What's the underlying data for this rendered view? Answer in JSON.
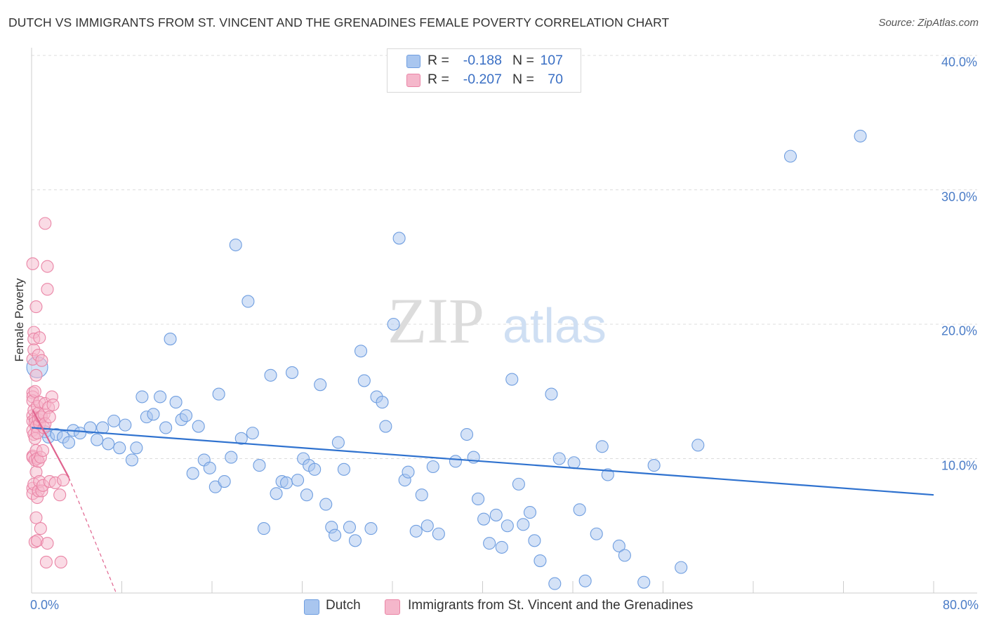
{
  "title": "DUTCH VS IMMIGRANTS FROM ST. VINCENT AND THE GRENADINES FEMALE POVERTY CORRELATION CHART",
  "source": "Source: ZipAtlas.com",
  "watermark": {
    "zip": "ZIP",
    "atlas": "atlas"
  },
  "colors": {
    "blue_fill": "#a9c6ef",
    "blue_stroke": "#6f9ee0",
    "blue_line": "#2f72cf",
    "pink_fill": "#f5b7cb",
    "pink_stroke": "#ea85a6",
    "pink_line": "#e0648f",
    "axis_text": "#4a7cc7",
    "grid": "#dcdcdc"
  },
  "stats": [
    {
      "swatch": "blue",
      "r_label": "R =",
      "r_value": "-0.188",
      "n_label": "N =",
      "n_value": "107"
    },
    {
      "swatch": "pink",
      "r_label": "R =",
      "r_value": "-0.207",
      "n_label": "N =",
      "n_value": "70"
    }
  ],
  "legend": [
    {
      "label": "Dutch",
      "swatch": "blue"
    },
    {
      "label": "Immigrants from St. Vincent and the Grenadines",
      "swatch": "pink"
    }
  ],
  "chart_data": {
    "type": "scatter",
    "title": "DUTCH VS IMMIGRANTS FROM ST. VINCENT AND THE GRENADINES FEMALE POVERTY CORRELATION CHART",
    "ylabel": "Female Poverty",
    "xlabel": "",
    "xlim": [
      0,
      80
    ],
    "ylim": [
      0,
      40
    ],
    "x_tick_labels": [
      {
        "value": 0,
        "label": "0.0%"
      },
      {
        "value": 80,
        "label": "80.0%"
      }
    ],
    "y_tick_labels": [
      {
        "value": 10,
        "label": "10.0%"
      },
      {
        "value": 20,
        "label": "20.0%"
      },
      {
        "value": 30,
        "label": "30.0%"
      },
      {
        "value": 40,
        "label": "40.0%"
      }
    ],
    "grid": true,
    "legend_position": "bottom-center",
    "series": [
      {
        "name": "Dutch",
        "color": "blue",
        "trend": {
          "x": [
            0,
            80
          ],
          "y": [
            12.3,
            7.3
          ]
        },
        "points": [
          [
            0.5,
            16.8
          ],
          [
            1.2,
            12.0
          ],
          [
            1.5,
            11.6
          ],
          [
            2.2,
            11.8
          ],
          [
            2.8,
            11.6
          ],
          [
            3.3,
            11.2
          ],
          [
            3.7,
            12.1
          ],
          [
            4.3,
            11.9
          ],
          [
            5.2,
            12.3
          ],
          [
            5.8,
            11.4
          ],
          [
            6.3,
            12.3
          ],
          [
            6.8,
            11.1
          ],
          [
            7.3,
            12.8
          ],
          [
            7.8,
            10.8
          ],
          [
            8.3,
            12.5
          ],
          [
            8.9,
            9.9
          ],
          [
            9.3,
            10.8
          ],
          [
            9.8,
            14.6
          ],
          [
            10.2,
            13.1
          ],
          [
            10.8,
            13.3
          ],
          [
            11.4,
            14.6
          ],
          [
            11.9,
            12.3
          ],
          [
            12.3,
            18.9
          ],
          [
            12.8,
            14.2
          ],
          [
            13.3,
            12.9
          ],
          [
            13.7,
            13.2
          ],
          [
            14.3,
            8.9
          ],
          [
            14.8,
            12.4
          ],
          [
            15.3,
            9.9
          ],
          [
            15.8,
            9.3
          ],
          [
            16.3,
            7.9
          ],
          [
            16.6,
            14.8
          ],
          [
            17.1,
            8.3
          ],
          [
            17.7,
            10.1
          ],
          [
            18.1,
            25.9
          ],
          [
            18.6,
            11.5
          ],
          [
            19.2,
            21.7
          ],
          [
            19.6,
            11.9
          ],
          [
            20.2,
            9.5
          ],
          [
            20.6,
            4.8
          ],
          [
            21.2,
            16.2
          ],
          [
            21.7,
            7.4
          ],
          [
            22.2,
            8.3
          ],
          [
            22.6,
            8.2
          ],
          [
            23.1,
            16.4
          ],
          [
            23.6,
            8.4
          ],
          [
            24.1,
            10.0
          ],
          [
            24.4,
            7.3
          ],
          [
            24.6,
            9.5
          ],
          [
            25.1,
            9.2
          ],
          [
            25.6,
            15.5
          ],
          [
            26.1,
            6.6
          ],
          [
            26.6,
            4.9
          ],
          [
            26.9,
            4.3
          ],
          [
            27.2,
            11.2
          ],
          [
            27.7,
            9.2
          ],
          [
            28.2,
            4.9
          ],
          [
            28.7,
            3.9
          ],
          [
            29.2,
            18.0
          ],
          [
            29.5,
            15.8
          ],
          [
            30.1,
            4.8
          ],
          [
            30.6,
            14.6
          ],
          [
            31.1,
            14.2
          ],
          [
            31.4,
            12.4
          ],
          [
            32.1,
            20.0
          ],
          [
            32.6,
            26.4
          ],
          [
            33.1,
            8.4
          ],
          [
            33.4,
            9.0
          ],
          [
            34.1,
            4.6
          ],
          [
            34.6,
            7.3
          ],
          [
            35.1,
            5.0
          ],
          [
            35.6,
            9.4
          ],
          [
            36.1,
            4.4
          ],
          [
            37.6,
            9.8
          ],
          [
            38.6,
            11.8
          ],
          [
            39.2,
            10.1
          ],
          [
            39.6,
            7.0
          ],
          [
            40.1,
            5.5
          ],
          [
            40.6,
            3.7
          ],
          [
            41.2,
            5.8
          ],
          [
            41.7,
            3.4
          ],
          [
            42.2,
            5.0
          ],
          [
            42.6,
            15.9
          ],
          [
            43.2,
            8.1
          ],
          [
            43.6,
            5.1
          ],
          [
            44.2,
            6.0
          ],
          [
            44.6,
            3.9
          ],
          [
            45.1,
            2.4
          ],
          [
            46.1,
            14.8
          ],
          [
            46.4,
            0.7
          ],
          [
            46.8,
            10.0
          ],
          [
            48.1,
            9.7
          ],
          [
            48.6,
            6.2
          ],
          [
            49.1,
            0.9
          ],
          [
            50.1,
            4.4
          ],
          [
            50.6,
            10.9
          ],
          [
            51.1,
            8.8
          ],
          [
            52.1,
            3.5
          ],
          [
            52.6,
            2.8
          ],
          [
            54.3,
            0.8
          ],
          [
            55.2,
            9.5
          ],
          [
            57.6,
            1.9
          ],
          [
            59.1,
            11.0
          ],
          [
            67.3,
            32.5
          ],
          [
            73.5,
            34.0
          ]
        ]
      },
      {
        "name": "Immigrants from St. Vincent and the Grenadines",
        "color": "pink",
        "trend": {
          "x": [
            0.1,
            3.3
          ],
          "y": [
            13.6,
            8.6
          ],
          "dashed_to": [
            7.5,
            0.0
          ]
        },
        "points": [
          [
            0.1,
            24.5
          ],
          [
            0.1,
            17.4
          ],
          [
            0.1,
            14.9
          ],
          [
            0.1,
            14.6
          ],
          [
            0.1,
            14.3
          ],
          [
            0.1,
            13.2
          ],
          [
            0.1,
            12.8
          ],
          [
            0.1,
            12.1
          ],
          [
            0.1,
            10.2
          ],
          [
            0.1,
            10.1
          ],
          [
            0.1,
            7.8
          ],
          [
            0.1,
            7.4
          ],
          [
            0.2,
            19.4
          ],
          [
            0.2,
            18.9
          ],
          [
            0.2,
            18.1
          ],
          [
            0.2,
            13.6
          ],
          [
            0.2,
            11.8
          ],
          [
            0.2,
            8.1
          ],
          [
            0.3,
            15.0
          ],
          [
            0.3,
            13.0
          ],
          [
            0.3,
            12.7
          ],
          [
            0.3,
            11.5
          ],
          [
            0.3,
            9.9
          ],
          [
            0.3,
            3.8
          ],
          [
            0.4,
            21.3
          ],
          [
            0.4,
            16.2
          ],
          [
            0.4,
            12.4
          ],
          [
            0.4,
            10.6
          ],
          [
            0.4,
            9.0
          ],
          [
            0.4,
            5.6
          ],
          [
            0.5,
            13.9
          ],
          [
            0.5,
            11.9
          ],
          [
            0.5,
            10.0
          ],
          [
            0.5,
            7.1
          ],
          [
            0.5,
            3.9
          ],
          [
            0.6,
            17.7
          ],
          [
            0.6,
            13.4
          ],
          [
            0.6,
            12.9
          ],
          [
            0.6,
            9.8
          ],
          [
            0.6,
            7.6
          ],
          [
            0.7,
            19.0
          ],
          [
            0.7,
            14.2
          ],
          [
            0.7,
            12.6
          ],
          [
            0.7,
            8.3
          ],
          [
            0.8,
            13.1
          ],
          [
            0.8,
            10.1
          ],
          [
            0.8,
            4.8
          ],
          [
            0.9,
            17.3
          ],
          [
            0.9,
            13.1
          ],
          [
            0.9,
            7.6
          ],
          [
            1.0,
            10.6
          ],
          [
            1.0,
            8.0
          ],
          [
            1.1,
            13.3
          ],
          [
            1.1,
            12.3
          ],
          [
            1.2,
            27.5
          ],
          [
            1.2,
            14.1
          ],
          [
            1.2,
            12.6
          ],
          [
            1.3,
            2.3
          ],
          [
            1.4,
            24.3
          ],
          [
            1.4,
            22.6
          ],
          [
            1.4,
            3.7
          ],
          [
            1.5,
            13.8
          ],
          [
            1.6,
            13.1
          ],
          [
            1.6,
            8.3
          ],
          [
            1.8,
            14.6
          ],
          [
            1.9,
            14.0
          ],
          [
            2.1,
            8.2
          ],
          [
            2.5,
            7.3
          ],
          [
            2.6,
            2.3
          ],
          [
            2.8,
            8.4
          ]
        ]
      }
    ]
  }
}
